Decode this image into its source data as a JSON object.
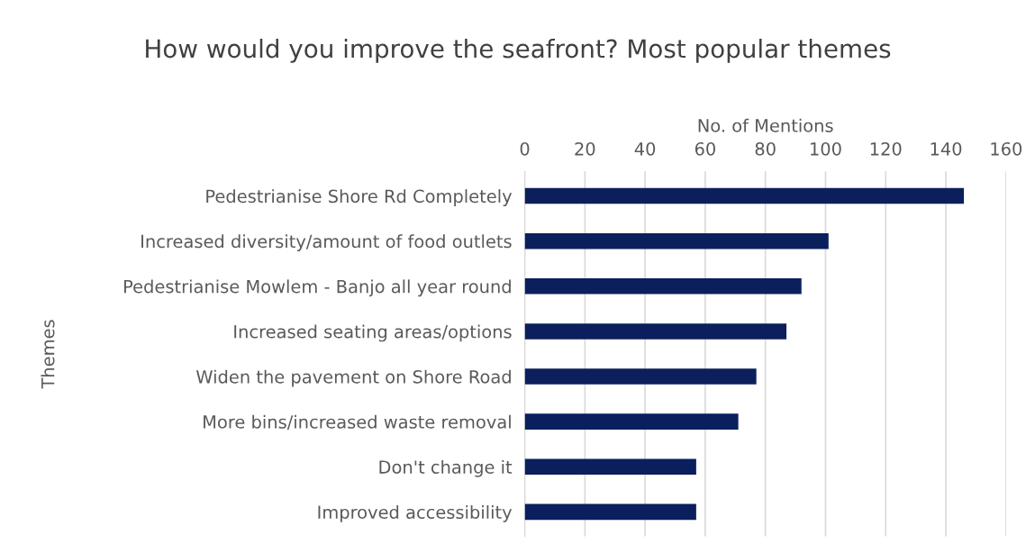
{
  "chart_data": {
    "type": "bar",
    "orientation": "horizontal",
    "title": "How would you improve the seafront? Most popular themes",
    "xlabel": "No. of Mentions",
    "ylabel": "Themes",
    "categories": [
      "Pedestrianise Shore Rd Completely",
      "Increased diversity/amount of food outlets",
      "Pedestrianise Mowlem - Banjo all year round",
      "Increased seating areas/options",
      "Widen the pavement on Shore Road",
      "More bins/increased waste removal",
      "Don't change it",
      "Improved accessibility"
    ],
    "values": [
      146,
      101,
      92,
      87,
      77,
      71,
      57,
      57
    ],
    "color": "#0b1f5c",
    "xlim": [
      0,
      160
    ],
    "xticks": [
      0,
      20,
      40,
      60,
      80,
      100,
      120,
      140,
      160
    ],
    "grid": "x",
    "legend": false
  }
}
